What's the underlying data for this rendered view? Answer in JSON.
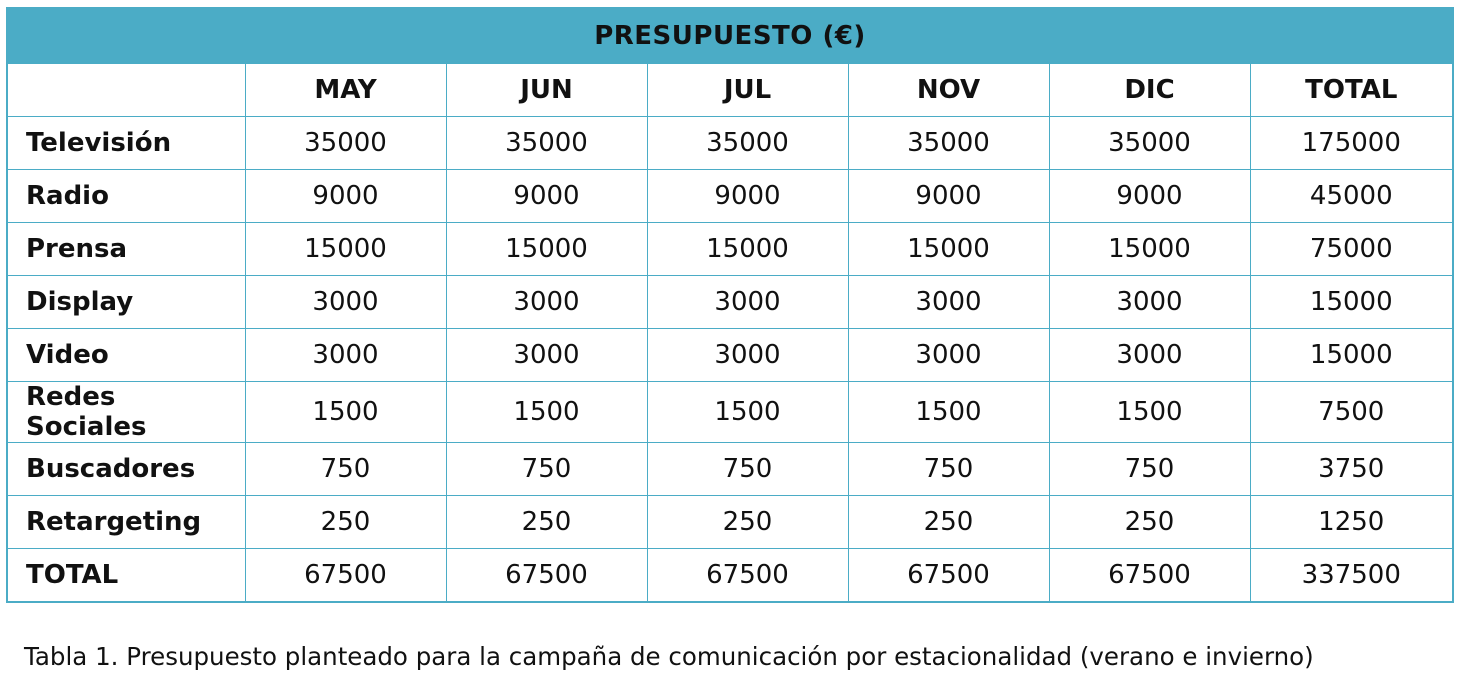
{
  "table": {
    "title": "PRESUPUESTO (€)",
    "columns": [
      "",
      "MAY",
      "JUN",
      "JUL",
      "NOV",
      "DIC",
      "TOTAL"
    ],
    "rows": [
      {
        "label": "Televisión",
        "values": [
          "35000",
          "35000",
          "35000",
          "35000",
          "35000",
          "175000"
        ]
      },
      {
        "label": "Radio",
        "values": [
          "9000",
          "9000",
          "9000",
          "9000",
          "9000",
          "45000"
        ]
      },
      {
        "label": "Prensa",
        "values": [
          "15000",
          "15000",
          "15000",
          "15000",
          "15000",
          "75000"
        ]
      },
      {
        "label": "Display",
        "values": [
          "3000",
          "3000",
          "3000",
          "3000",
          "3000",
          "15000"
        ]
      },
      {
        "label": "Video",
        "values": [
          "3000",
          "3000",
          "3000",
          "3000",
          "3000",
          "15000"
        ]
      },
      {
        "label": "Redes Sociales",
        "values": [
          "1500",
          "1500",
          "1500",
          "1500",
          "1500",
          "7500"
        ]
      },
      {
        "label": "Buscadores",
        "values": [
          "750",
          "750",
          "750",
          "750",
          "750",
          "3750"
        ]
      },
      {
        "label": "Retargeting",
        "values": [
          "250",
          "250",
          "250",
          "250",
          "250",
          "1250"
        ]
      },
      {
        "label": "TOTAL",
        "values": [
          "67500",
          "67500",
          "67500",
          "67500",
          "67500",
          "337500"
        ]
      }
    ]
  },
  "caption": "Tabla 1. Presupuesto planteado para la campaña de comunicación por estacionalidad (verano e invierno)",
  "colors": {
    "header_fill": "#4bacc6",
    "border": "#4bacc6"
  }
}
